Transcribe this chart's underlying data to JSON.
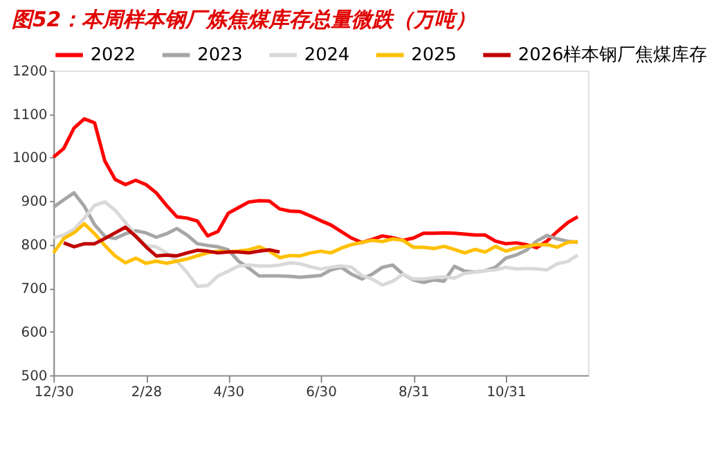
{
  "chart_data": {
    "type": "line",
    "title": "图52：本周样本钢厂炼焦煤库存总量微跌（万吨）",
    "categories": [
      "12/30",
      null,
      null,
      null,
      null,
      null,
      null,
      null,
      null,
      "2/28",
      null,
      null,
      null,
      null,
      null,
      null,
      null,
      "4/30",
      null,
      null,
      null,
      null,
      null,
      null,
      null,
      null,
      "6/30",
      null,
      null,
      null,
      null,
      null,
      null,
      null,
      null,
      "8/31",
      null,
      null,
      null,
      null,
      null,
      null,
      null,
      null,
      "10/31",
      null,
      null,
      null,
      null,
      null,
      null,
      null,
      null
    ],
    "series": [
      {
        "name": "2022",
        "color": "#ff0000",
        "values": [
          1001,
          1021,
          1068,
          1089,
          1080,
          992,
          950,
          938,
          948,
          938,
          919,
          890,
          864,
          861,
          854,
          820,
          830,
          872,
          885,
          898,
          901,
          900,
          882,
          877,
          876,
          866,
          855,
          845,
          830,
          815,
          805,
          812,
          820,
          816,
          810,
          815,
          826,
          826,
          827,
          826,
          824,
          822,
          822,
          808,
          802,
          804,
          800,
          793,
          808,
          830,
          850,
          864,
          null
        ]
      },
      {
        "name": "2023",
        "color": "#a6a6a6",
        "values": [
          886,
          903,
          919,
          888,
          846,
          819,
          814,
          825,
          832,
          827,
          817,
          825,
          837,
          822,
          802,
          798,
          795,
          788,
          762,
          746,
          728,
          728,
          728,
          727,
          725,
          727,
          729,
          742,
          748,
          732,
          721,
          732,
          748,
          753,
          732,
          719,
          713,
          719,
          716,
          750,
          739,
          737,
          740,
          748,
          769,
          776,
          787,
          808,
          821,
          813,
          808,
          805,
          null
        ]
      },
      {
        "name": "2024",
        "color": "#d9d9d9",
        "values": [
          816,
          822,
          835,
          861,
          890,
          898,
          879,
          851,
          822,
          798,
          795,
          781,
          762,
          736,
          704,
          706,
          728,
          739,
          751,
          753,
          751,
          751,
          753,
          758,
          756,
          749,
          744,
          748,
          751,
          748,
          729,
          721,
          707,
          716,
          732,
          721,
          721,
          724,
          726,
          723,
          734,
          737,
          740,
          742,
          748,
          744,
          745,
          744,
          742,
          756,
          761,
          776,
          null
        ]
      },
      {
        "name": "2025",
        "color": "#ffc000",
        "values": [
          781,
          814,
          827,
          848,
          825,
          798,
          774,
          758,
          769,
          757,
          762,
          757,
          762,
          767,
          774,
          781,
          785,
          783,
          785,
          788,
          795,
          785,
          770,
          775,
          774,
          781,
          785,
          781,
          792,
          800,
          805,
          810,
          807,
          813,
          810,
          794,
          794,
          791,
          796,
          789,
          781,
          789,
          783,
          796,
          785,
          792,
          796,
          800,
          800,
          794,
          805,
          807,
          null
        ]
      },
      {
        "name": "2026样本钢厂焦煤库存",
        "color": "#c00000",
        "values": [
          null,
          804,
          795,
          802,
          802,
          814,
          827,
          840,
          819,
          795,
          774,
          776,
          774,
          781,
          787,
          785,
          781,
          783,
          783,
          781,
          785,
          788,
          783,
          null,
          null,
          null,
          null,
          null,
          null,
          null,
          null,
          null,
          null,
          null,
          null,
          null,
          null,
          null,
          null,
          null,
          null,
          null,
          null,
          null,
          null,
          null,
          null,
          null,
          null,
          null,
          null,
          null,
          null
        ]
      }
    ],
    "ylim": [
      500,
      1200
    ],
    "yticks": [
      500,
      600,
      700,
      800,
      900,
      1000,
      1100,
      1200
    ],
    "grid": false,
    "legend": "top",
    "marker": "none",
    "line_style": "solid"
  }
}
